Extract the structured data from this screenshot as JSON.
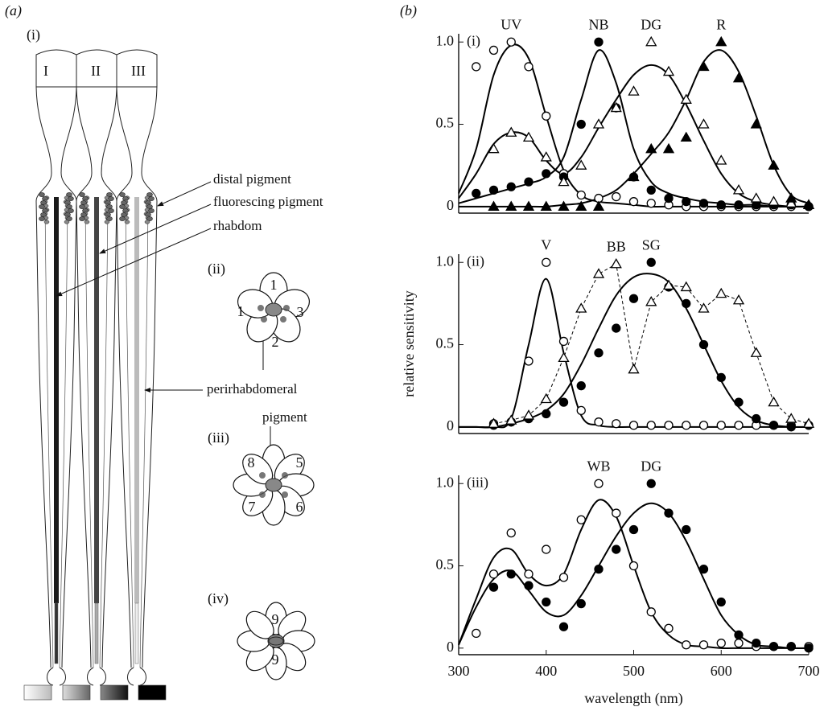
{
  "panel_a": {
    "label": "(a)",
    "ommatidium": {
      "label": "(i)",
      "facets": [
        "I",
        "II",
        "III"
      ],
      "annotations": [
        "distal pigment",
        "fluorescing pigment",
        "rhabdom",
        "perirhabdomeral"
      ]
    },
    "sections": [
      {
        "label": "(ii)",
        "cells": [
          "1",
          "1",
          "3",
          "2"
        ]
      },
      {
        "label": "(iii)",
        "annotation": "pigment",
        "cells": [
          "8",
          "5",
          "7",
          "6"
        ]
      },
      {
        "label": "(iv)",
        "cells": [
          "9",
          "9"
        ]
      }
    ]
  },
  "panel_b": {
    "label": "(b)"
  },
  "chart_data": [
    {
      "type": "scatter",
      "panel_label": "(i)",
      "color": "#000000",
      "x": [
        300,
        320,
        340,
        360,
        380,
        400,
        420,
        440,
        460,
        480,
        500,
        520,
        540,
        560,
        580,
        600,
        620,
        640,
        660,
        680,
        700
      ],
      "xlim": [
        300,
        700
      ],
      "ylim": [
        -0.04,
        1.05
      ],
      "yticks": [
        0,
        0.5,
        {
          "value": 1,
          "label": "1.0"
        }
      ],
      "series": [
        {
          "name": "UV",
          "marker": "open-circle",
          "line": "solid",
          "values": [
            null,
            0.85,
            0.95,
            1.0,
            0.85,
            0.55,
            0.2,
            0.07,
            0.05,
            0.06,
            0.03,
            0.02,
            0.01,
            0,
            0,
            0,
            0,
            0,
            0,
            0,
            0
          ],
          "fit": [
            0.08,
            0.35,
            0.8,
            0.98,
            0.9,
            0.55,
            0.22,
            0.07,
            0.03,
            0.02,
            0.01,
            0,
            0,
            0,
            0,
            0,
            0,
            0,
            0,
            0,
            0
          ]
        },
        {
          "name": "NB",
          "marker": "filled-circle",
          "line": "solid",
          "values": [
            null,
            0.08,
            0.1,
            0.12,
            0.15,
            0.2,
            0.18,
            0.5,
            1.0,
            0.6,
            0.18,
            0.1,
            0.05,
            0.03,
            0.02,
            0.01,
            0.01,
            0.01,
            0.01,
            0.01,
            0
          ],
          "fit": [
            0.02,
            0.05,
            0.08,
            0.11,
            0.14,
            0.18,
            0.3,
            0.65,
            0.95,
            0.75,
            0.35,
            0.15,
            0.08,
            0.05,
            0.03,
            0.02,
            0.01,
            0.01,
            0,
            0,
            0
          ]
        },
        {
          "name": "DG",
          "marker": "open-triangle",
          "line": "solid",
          "values": [
            null,
            null,
            0.35,
            0.45,
            0.42,
            0.3,
            0.15,
            0.25,
            0.5,
            0.6,
            0.7,
            1.0,
            0.82,
            0.65,
            0.5,
            0.28,
            0.1,
            0.05,
            0.03,
            0.02,
            0.01
          ],
          "fit": [
            0.05,
            0.2,
            0.38,
            0.45,
            0.42,
            0.28,
            0.2,
            0.3,
            0.48,
            0.65,
            0.8,
            0.86,
            0.8,
            0.62,
            0.4,
            0.2,
            0.08,
            0.03,
            0.01,
            0,
            0
          ]
        },
        {
          "name": "R",
          "marker": "filled-triangle",
          "line": "solid",
          "values": [
            null,
            null,
            0,
            0,
            0,
            0,
            0,
            0,
            0,
            null,
            0.18,
            0.35,
            0.35,
            0.42,
            0.85,
            1.0,
            0.78,
            0.5,
            0.25,
            0.05,
            0.01
          ],
          "fit": [
            0,
            0,
            0,
            0,
            0,
            0,
            0.01,
            0.02,
            0.05,
            0.1,
            0.2,
            0.32,
            0.45,
            0.65,
            0.88,
            0.95,
            0.82,
            0.55,
            0.25,
            0.07,
            0.02
          ]
        }
      ]
    },
    {
      "type": "scatter",
      "panel_label": "(ii)",
      "color": "#000000",
      "ylabel": "relative sensitivity",
      "x": [
        300,
        320,
        340,
        360,
        380,
        400,
        420,
        440,
        460,
        480,
        500,
        520,
        540,
        560,
        580,
        600,
        620,
        640,
        660,
        680,
        700
      ],
      "xlim": [
        300,
        700
      ],
      "ylim": [
        -0.04,
        1.05
      ],
      "yticks": [
        0,
        0.5,
        {
          "value": 1,
          "label": "1.0"
        }
      ],
      "series": [
        {
          "name": "V",
          "marker": "open-circle",
          "line": "solid",
          "values": [
            null,
            null,
            0.02,
            0.03,
            0.4,
            1.0,
            0.52,
            0.1,
            0.03,
            0.02,
            0.01,
            0.01,
            0.01,
            0.01,
            0.01,
            0.01,
            0.01,
            0.01,
            0.01,
            0.01,
            0.01
          ],
          "fit": [
            0,
            0,
            0,
            0.05,
            0.5,
            0.9,
            0.45,
            0.07,
            0.01,
            0,
            0,
            0,
            0,
            0,
            0,
            0,
            0,
            0,
            0,
            0,
            0
          ]
        },
        {
          "name": "SG",
          "marker": "filled-circle",
          "line": "solid",
          "values": [
            null,
            null,
            0.01,
            0.03,
            0.05,
            0.08,
            0.15,
            0.25,
            0.45,
            0.6,
            0.78,
            1.0,
            0.85,
            0.75,
            0.5,
            0.3,
            0.15,
            0.05,
            0.01,
            0,
            0.01
          ],
          "fit": [
            0,
            0,
            0,
            0.02,
            0.05,
            0.1,
            0.2,
            0.38,
            0.6,
            0.8,
            0.91,
            0.93,
            0.88,
            0.72,
            0.5,
            0.28,
            0.12,
            0.04,
            0.01,
            0,
            0
          ]
        },
        {
          "name": "BB",
          "marker": "open-triangle",
          "line": "dashed",
          "values": [
            null,
            null,
            0.02,
            0.04,
            0.07,
            0.17,
            0.42,
            0.72,
            0.93,
            0.99,
            0.35,
            0.76,
            0.86,
            0.85,
            0.72,
            0.81,
            0.77,
            0.45,
            0.15,
            0.05,
            0.02
          ]
        }
      ]
    },
    {
      "type": "scatter",
      "panel_label": "(iii)",
      "color": "#000000",
      "xlabel": "wavelength (nm)",
      "x": [
        300,
        320,
        340,
        360,
        380,
        400,
        420,
        440,
        460,
        480,
        500,
        520,
        540,
        560,
        580,
        600,
        620,
        640,
        660,
        680,
        700
      ],
      "xlim": [
        300,
        700
      ],
      "ylim": [
        -0.04,
        1.05
      ],
      "xticks": [
        300,
        400,
        500,
        600,
        700
      ],
      "yticks": [
        0,
        0.5,
        {
          "value": 1,
          "label": "1.0"
        }
      ],
      "series": [
        {
          "name": "WB",
          "marker": "open-circle",
          "line": "solid",
          "values": [
            null,
            0.09,
            0.45,
            0.7,
            0.45,
            0.6,
            0.43,
            0.78,
            1.0,
            0.82,
            0.5,
            0.22,
            0.12,
            0.02,
            0.02,
            0.03,
            0.03,
            0.01,
            0.01,
            0.01,
            0.01
          ],
          "fit": [
            0.02,
            0.3,
            0.55,
            0.6,
            0.45,
            0.38,
            0.45,
            0.72,
            0.9,
            0.8,
            0.5,
            0.22,
            0.08,
            0.02,
            0.01,
            0,
            0,
            0,
            0,
            0,
            0
          ]
        },
        {
          "name": "DG",
          "marker": "filled-circle",
          "line": "solid",
          "values": [
            null,
            null,
            0.37,
            0.45,
            0.38,
            0.28,
            0.13,
            0.27,
            0.48,
            0.6,
            0.72,
            1.0,
            0.82,
            0.72,
            0.48,
            0.28,
            0.08,
            0.03,
            0.01,
            0.01,
            0
          ],
          "fit": [
            0.02,
            0.25,
            0.42,
            0.47,
            0.35,
            0.22,
            0.2,
            0.32,
            0.5,
            0.68,
            0.82,
            0.88,
            0.82,
            0.65,
            0.42,
            0.2,
            0.08,
            0.02,
            0.01,
            0,
            0
          ]
        }
      ]
    }
  ]
}
